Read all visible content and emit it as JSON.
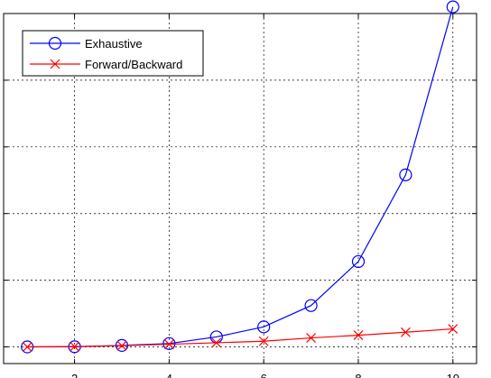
{
  "chart_data": {
    "type": "line",
    "title": "",
    "xlabel": "",
    "ylabel": "",
    "xlim": [
      0.5,
      10.5
    ],
    "ylim": [
      -2.5,
      50
    ],
    "x_ticks": [
      2,
      4,
      6,
      8,
      10
    ],
    "x_tick_labels": [
      "2",
      "4",
      "6",
      "8",
      "10"
    ],
    "y_ticks": [
      0,
      10,
      20,
      30,
      40,
      50
    ],
    "y_tick_labels": [],
    "grid": true,
    "legend_position": "top-left",
    "x": [
      1,
      2,
      3,
      4,
      5,
      6,
      7,
      8,
      9,
      10
    ],
    "series": [
      {
        "name": "Exhaustive",
        "color": "#0000ff",
        "marker": "circle",
        "values": [
          0,
          0.02,
          0.22,
          0.5,
          1.5,
          3.0,
          6.2,
          12.8,
          25.8,
          51.0
        ]
      },
      {
        "name": "Forward/Backward",
        "color": "#ff0000",
        "marker": "x",
        "values": [
          0,
          0.05,
          0.18,
          0.4,
          0.62,
          0.85,
          1.35,
          1.75,
          2.2,
          2.7
        ]
      }
    ]
  }
}
